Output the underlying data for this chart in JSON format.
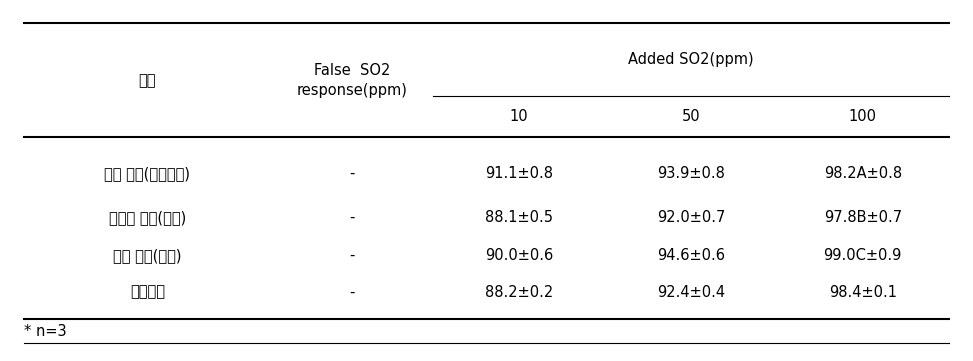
{
  "rows": [
    [
      "고형 시료(바나나칩)",
      "-",
      "91.1±0.8",
      "93.9±0.8",
      "98.2A±0.8"
    ],
    [
      "반고형 시료(물쥿)",
      "-",
      "88.1±0.5",
      "92.0±0.7",
      "97.8B±0.7"
    ],
    [
      "액상 시료(식초)",
      "-",
      "90.0±0.6",
      "94.6±0.6",
      "99.0C±0.9"
    ],
    [
      "표준용액",
      "-",
      "88.2±0.2",
      "92.4±0.4",
      "98.4±0.1"
    ]
  ],
  "header_col0": "시료",
  "header_col1_line1": "False  SO2",
  "header_col1_line2": "response(ppm)",
  "header_col2": "Added SO2(ppm)",
  "subheaders": [
    "10",
    "50",
    "100"
  ],
  "footnote": "* n=3",
  "body_bg": "#ffffff",
  "text_color": "#000000",
  "font_size": 10.5
}
